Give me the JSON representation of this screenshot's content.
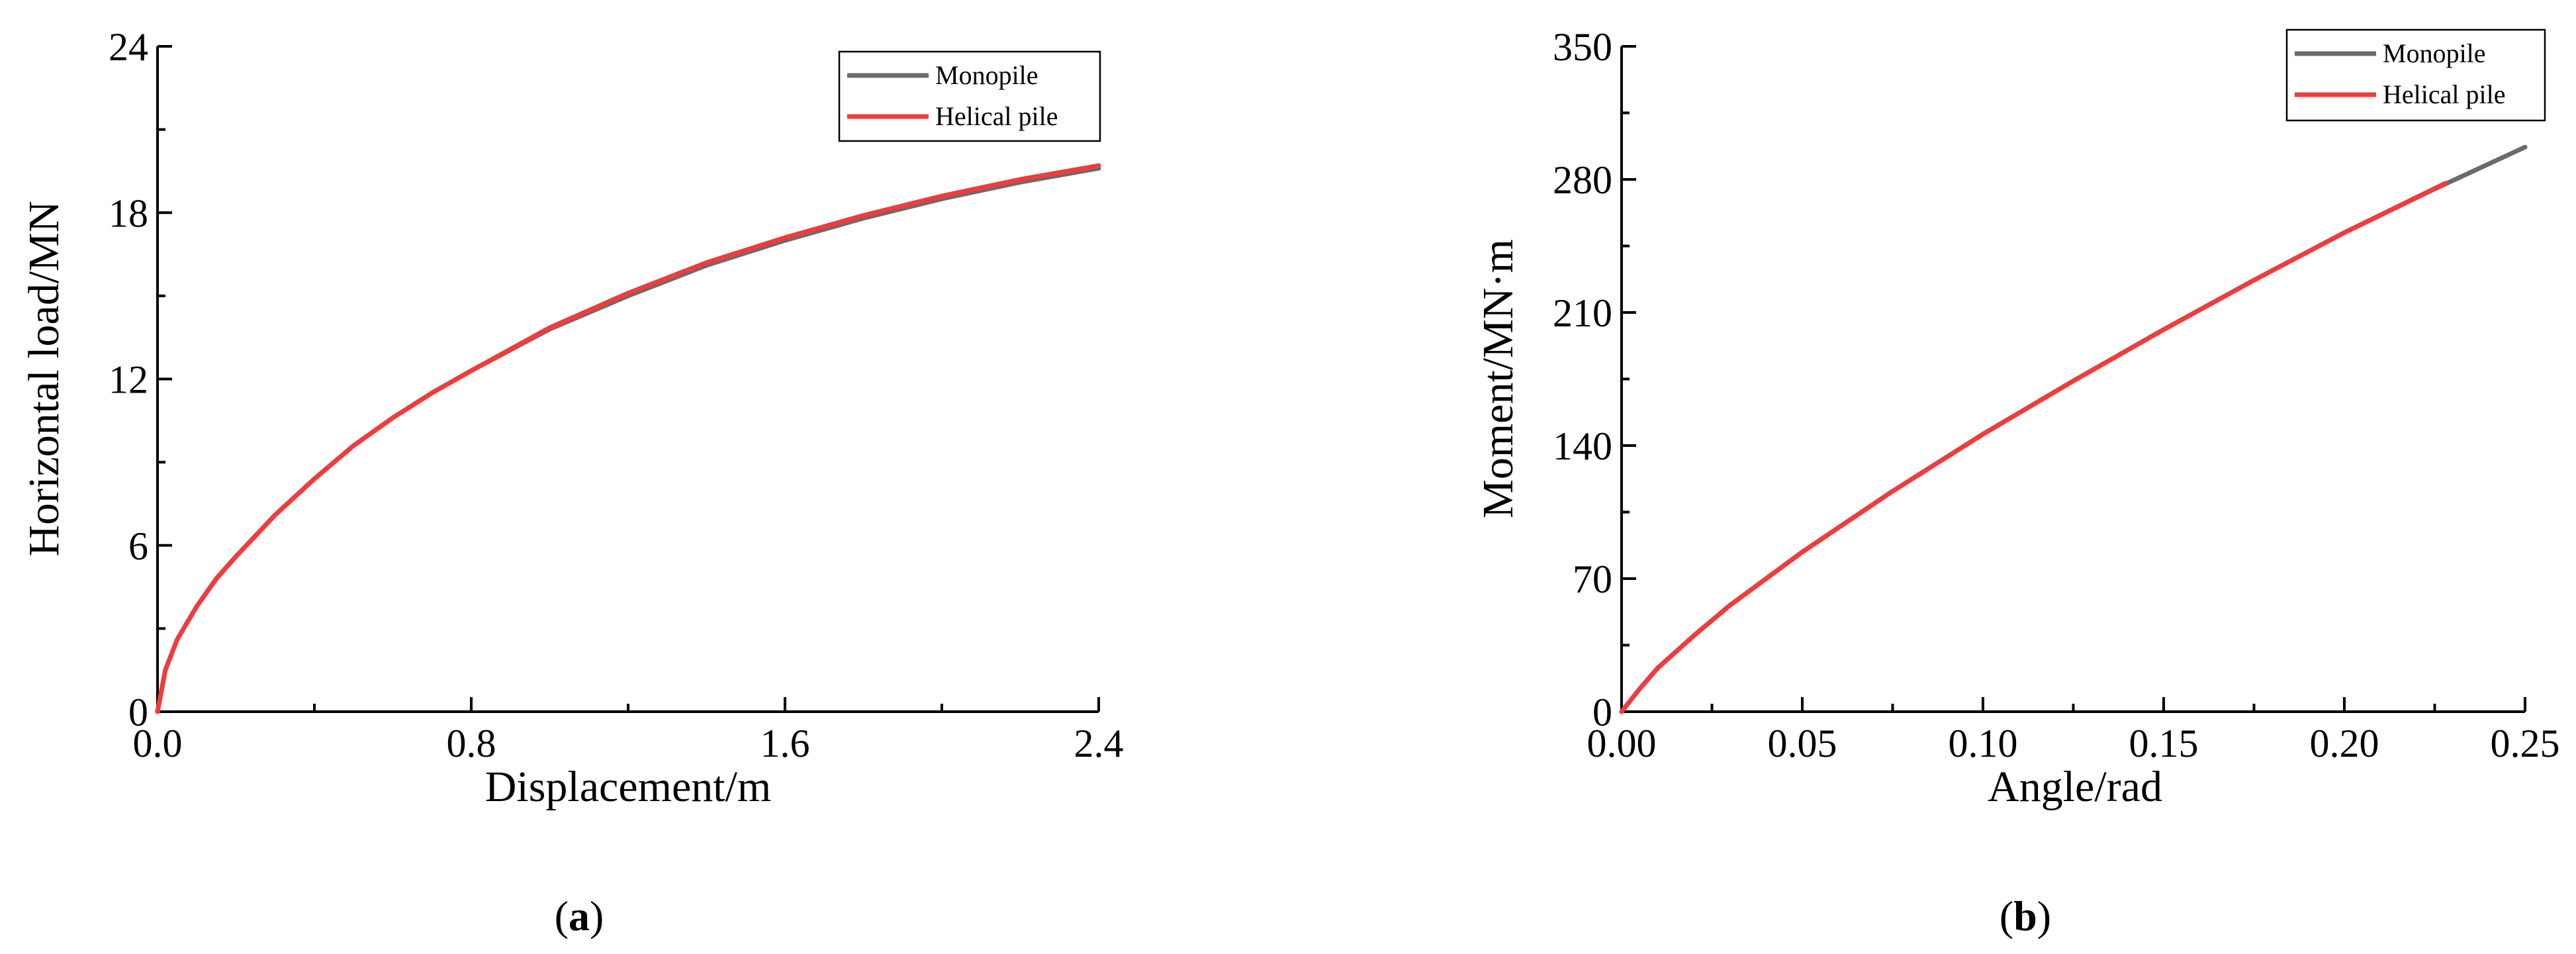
{
  "chart_data": [
    {
      "type": "line",
      "panel_label": "a",
      "xlabel": "Displacement/m",
      "ylabel": "Horizontal load/MN",
      "xlim": [
        0,
        2.4
      ],
      "ylim": [
        0,
        24
      ],
      "xticks": [
        "0.0",
        "0.8",
        "1.6",
        "2.4"
      ],
      "yticks": [
        "0",
        "6",
        "12",
        "18",
        "24"
      ],
      "grid": false,
      "legend_position": "top-right",
      "series": [
        {
          "name": "Monopile",
          "color": "#6b6b6b",
          "x": [
            0,
            0.02,
            0.05,
            0.1,
            0.15,
            0.2,
            0.3,
            0.4,
            0.5,
            0.6,
            0.7,
            0.8,
            1.0,
            1.2,
            1.4,
            1.6,
            1.8,
            2.0,
            2.2,
            2.4
          ],
          "y": [
            0,
            1.5,
            2.6,
            3.8,
            4.8,
            5.6,
            7.1,
            8.4,
            9.6,
            10.6,
            11.5,
            12.3,
            13.8,
            15.0,
            16.1,
            17.0,
            17.8,
            18.5,
            19.1,
            19.6
          ]
        },
        {
          "name": "Helical pile",
          "color": "#f03c3c",
          "x": [
            0,
            0.02,
            0.05,
            0.1,
            0.15,
            0.2,
            0.3,
            0.4,
            0.5,
            0.6,
            0.7,
            0.8,
            1.0,
            1.2,
            1.4,
            1.6,
            1.8,
            2.0,
            2.2,
            2.4
          ],
          "y": [
            0,
            1.5,
            2.6,
            3.8,
            4.8,
            5.6,
            7.1,
            8.4,
            9.6,
            10.6,
            11.5,
            12.3,
            13.85,
            15.1,
            16.2,
            17.1,
            17.9,
            18.6,
            19.2,
            19.7
          ]
        }
      ]
    },
    {
      "type": "line",
      "panel_label": "b",
      "xlabel": "Angle/rad",
      "ylabel": "Moment/MN·m",
      "xlim": [
        0,
        0.25
      ],
      "ylim": [
        0,
        350
      ],
      "xticks": [
        "0.00",
        "0.05",
        "0.10",
        "0.15",
        "0.20",
        "0.25"
      ],
      "yticks": [
        "0",
        "70",
        "140",
        "210",
        "280",
        "350"
      ],
      "grid": false,
      "legend_position": "top-right",
      "series": [
        {
          "name": "Monopile",
          "color": "#6b6b6b",
          "x": [
            0,
            0.005,
            0.01,
            0.02,
            0.03,
            0.04,
            0.05,
            0.075,
            0.1,
            0.125,
            0.15,
            0.175,
            0.2,
            0.225,
            0.25
          ],
          "y": [
            0,
            12,
            23,
            40,
            56,
            70,
            84,
            116,
            146,
            174,
            201,
            227,
            252,
            275,
            297
          ]
        },
        {
          "name": "Helical pile",
          "color": "#f03c3c",
          "x": [
            0,
            0.005,
            0.01,
            0.02,
            0.03,
            0.04,
            0.05,
            0.075,
            0.1,
            0.125,
            0.15,
            0.175,
            0.2,
            0.228
          ],
          "y": [
            0,
            12,
            23,
            40,
            56,
            70,
            84,
            116,
            146,
            174,
            201,
            227,
            252,
            278
          ]
        }
      ]
    }
  ]
}
